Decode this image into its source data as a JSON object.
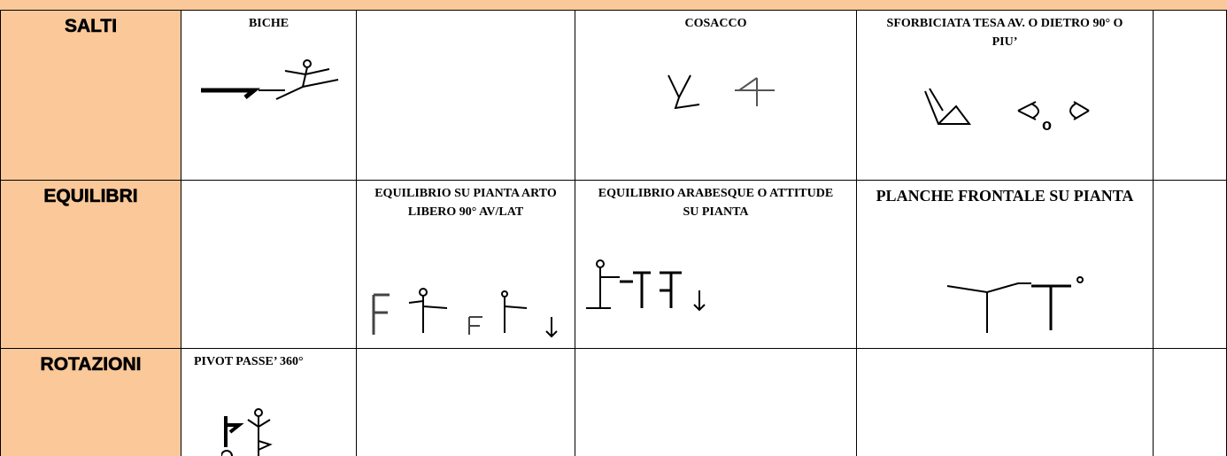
{
  "table": {
    "rows": [
      {
        "label": "SALTI",
        "cells": {
          "1": "BICHE",
          "3": "COSACCO",
          "4": "SFORBICIATA TESA AV. O DIETRO 90° O PIU’"
        },
        "connector": "o"
      },
      {
        "label": "EQUILIBRI",
        "cells": {
          "2": "EQUILIBRIO SU PIANTA ARTO LIBERO 90° AV/LAT",
          "3": "EQUILIBRIO ARABESQUE O ATTITUDE SU PIANTA",
          "4": "PLANCHE FRONTALE SU PIANTA"
        }
      },
      {
        "label": "ROTAZIONI",
        "cells": {
          "1": "PIVOT PASSE’ 360°"
        }
      }
    ]
  }
}
